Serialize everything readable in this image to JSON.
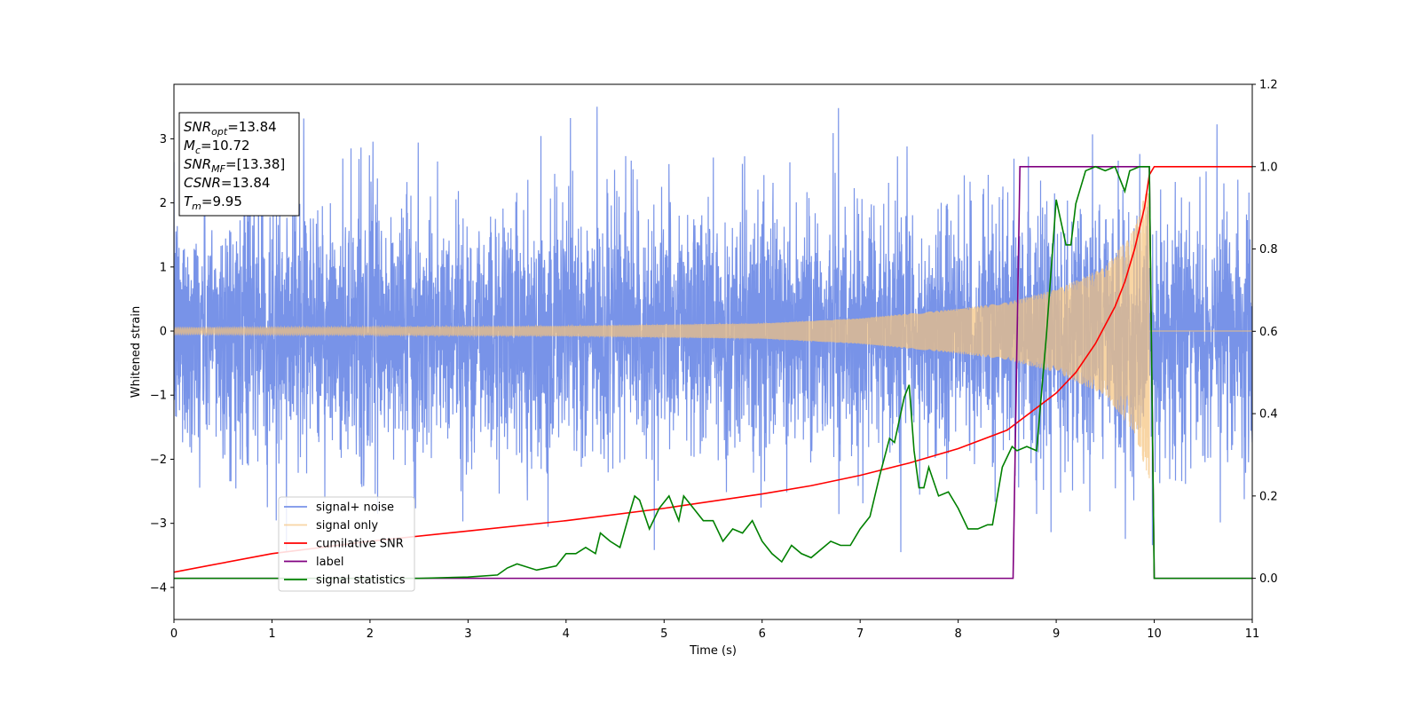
{
  "chart_data": {
    "type": "line",
    "xlabel": "Time (s)",
    "ylabel": "Whitened strain",
    "xlim": [
      0,
      11
    ],
    "ylim": [
      -4.5,
      3.85
    ],
    "ylim_right": [
      -0.1,
      1.2
    ],
    "xticks": [
      0,
      1,
      2,
      3,
      4,
      5,
      6,
      7,
      8,
      9,
      10,
      11
    ],
    "yticks": [
      -4,
      -3,
      -2,
      -1,
      0,
      1,
      2,
      3
    ],
    "yticks_right": [
      0.0,
      0.2,
      0.4,
      0.6,
      0.8,
      1.0,
      1.2
    ],
    "ytick_labels": [
      "−4",
      "−3",
      "−2",
      "−1",
      "0",
      "1",
      "2",
      "3"
    ],
    "yticks_right_labels": [
      "0.0",
      "0.2",
      "0.4",
      "0.6",
      "0.8",
      "1.0",
      "1.2"
    ],
    "legend_placement": "lower-left",
    "colors": {
      "noise": "#7893e8",
      "signal": "#f5c37e",
      "cumulative_snr": "#ff0000",
      "label": "#800080",
      "signal_statistics": "#008000"
    },
    "annotation_box": [
      {
        "base": "SNR",
        "sub": "opt",
        "value": "=13.84"
      },
      {
        "base": "M",
        "sub": "c",
        "value": "=10.72"
      },
      {
        "base": "SNR",
        "sub": "MF",
        "value": "=[13.38]"
      },
      {
        "base": "CSNR",
        "sub": "",
        "value": "=13.84"
      },
      {
        "base": "T",
        "sub": "m",
        "value": "=9.95"
      }
    ],
    "series": [
      {
        "name": "signal+ noise",
        "axis": "left",
        "description_values": "whitened noise, roughly within ±2 with spikes to 3.5 and -4.2",
        "x_range": [
          0,
          11
        ],
        "amplitude": 1.0
      },
      {
        "name": "signal only",
        "axis": "left",
        "x_range": [
          0,
          9.95
        ],
        "envelope_points": [
          [
            0,
            0.05
          ],
          [
            4,
            0.08
          ],
          [
            6,
            0.12
          ],
          [
            7,
            0.2
          ],
          [
            8,
            0.35
          ],
          [
            8.5,
            0.45
          ],
          [
            9,
            0.65
          ],
          [
            9.5,
            1.0
          ],
          [
            9.8,
            1.6
          ],
          [
            9.9,
            2.1
          ],
          [
            9.95,
            2.3
          ]
        ]
      },
      {
        "name": "cumilative SNR",
        "axis": "right",
        "x": [
          0,
          1,
          2,
          3,
          4,
          5,
          6,
          6.5,
          7,
          7.5,
          8,
          8.5,
          9,
          9.2,
          9.4,
          9.6,
          9.7,
          9.8,
          9.9,
          9.95,
          10,
          11
        ],
        "y": [
          0.015,
          0.06,
          0.09,
          0.115,
          0.14,
          0.17,
          0.205,
          0.225,
          0.25,
          0.28,
          0.315,
          0.36,
          0.45,
          0.5,
          0.57,
          0.66,
          0.72,
          0.8,
          0.9,
          0.98,
          1.0,
          1.0
        ]
      },
      {
        "name": "label",
        "axis": "right",
        "x": [
          0,
          8.56,
          8.63,
          9.95,
          10.0,
          11
        ],
        "y": [
          0.0,
          0.0,
          1.0,
          1.0,
          0.0,
          0.0
        ]
      },
      {
        "name": "signal statistics",
        "axis": "right",
        "x": [
          0,
          2.5,
          3.0,
          3.3,
          3.4,
          3.5,
          3.7,
          3.9,
          4.0,
          4.1,
          4.2,
          4.3,
          4.35,
          4.45,
          4.55,
          4.65,
          4.7,
          4.75,
          4.85,
          4.95,
          5.05,
          5.15,
          5.2,
          5.3,
          5.4,
          5.5,
          5.6,
          5.7,
          5.8,
          5.9,
          6.0,
          6.1,
          6.2,
          6.3,
          6.4,
          6.5,
          6.6,
          6.7,
          6.8,
          6.9,
          7.0,
          7.1,
          7.2,
          7.3,
          7.35,
          7.45,
          7.5,
          7.55,
          7.6,
          7.65,
          7.7,
          7.8,
          7.9,
          8.0,
          8.1,
          8.2,
          8.3,
          8.35,
          8.45,
          8.55,
          8.6,
          8.7,
          8.8,
          8.9,
          9.0,
          9.1,
          9.15,
          9.2,
          9.3,
          9.4,
          9.5,
          9.6,
          9.7,
          9.75,
          9.85,
          9.95,
          10.0,
          11
        ],
        "y": [
          0.0,
          0.0,
          0.003,
          0.008,
          0.025,
          0.035,
          0.02,
          0.03,
          0.06,
          0.06,
          0.075,
          0.06,
          0.11,
          0.09,
          0.075,
          0.16,
          0.2,
          0.19,
          0.12,
          0.17,
          0.2,
          0.14,
          0.2,
          0.17,
          0.14,
          0.14,
          0.09,
          0.12,
          0.11,
          0.14,
          0.09,
          0.06,
          0.04,
          0.08,
          0.06,
          0.05,
          0.07,
          0.09,
          0.08,
          0.08,
          0.12,
          0.15,
          0.25,
          0.34,
          0.33,
          0.44,
          0.47,
          0.31,
          0.22,
          0.22,
          0.27,
          0.2,
          0.21,
          0.17,
          0.12,
          0.12,
          0.13,
          0.13,
          0.27,
          0.32,
          0.31,
          0.32,
          0.31,
          0.59,
          0.92,
          0.81,
          0.81,
          0.91,
          0.99,
          1.0,
          0.99,
          1.0,
          0.94,
          0.99,
          1.0,
          1.0,
          0.0,
          0.0
        ]
      }
    ]
  }
}
